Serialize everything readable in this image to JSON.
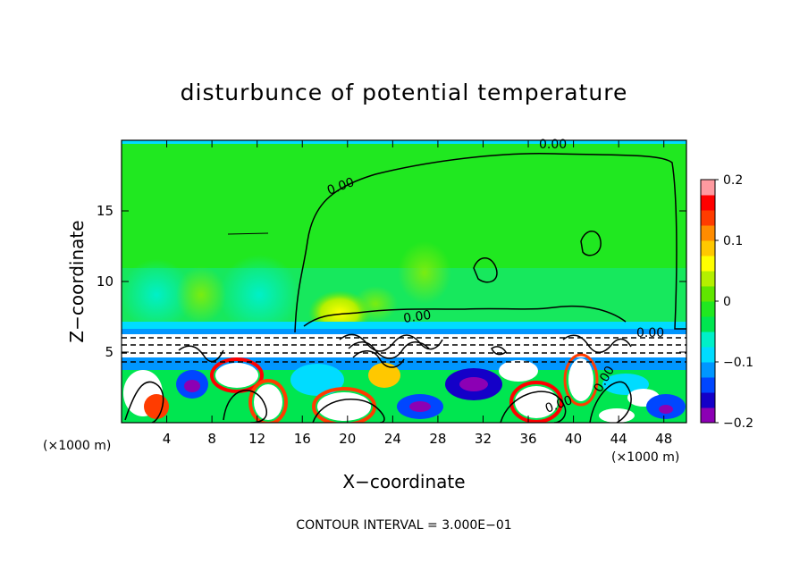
{
  "chart_data": {
    "type": "heatmap",
    "title": "disturbunce of potential temperature",
    "xlabel": "X−coordinate",
    "ylabel": "Z−coordinate",
    "x_unit": "(×1000 m)",
    "x_unit_right": "(×1000 m)",
    "xlim": [
      0,
      50
    ],
    "ylim": [
      0,
      20
    ],
    "xticks": [
      4,
      8,
      12,
      16,
      20,
      24,
      28,
      32,
      36,
      40,
      44,
      48
    ],
    "yticks": [
      5,
      10,
      15
    ],
    "colorbar": {
      "range": [
        -0.2,
        0.2
      ],
      "tick_values": [
        0.2,
        0.1,
        0,
        -0.1,
        -0.2
      ],
      "tick_labels": [
        "0.2",
        "0.1",
        "0",
        "−0.1",
        "−0.2"
      ],
      "colors": [
        "#8c00b4",
        "#1400c8",
        "#0046ff",
        "#0096ff",
        "#00dcff",
        "#00f0c8",
        "#00e650",
        "#20e820",
        "#60e600",
        "#b4f000",
        "#ffff00",
        "#ffc800",
        "#ff8c00",
        "#ff3c00",
        "#ff0000",
        "#ff9aa0"
      ]
    },
    "contour_labels": [
      "0.00",
      "0.00",
      "0.00",
      "0.00",
      "0.00",
      "0.00"
    ],
    "contour_interval_label": "CONTOUR INTERVAL = 3.000E−01",
    "grid": false
  }
}
